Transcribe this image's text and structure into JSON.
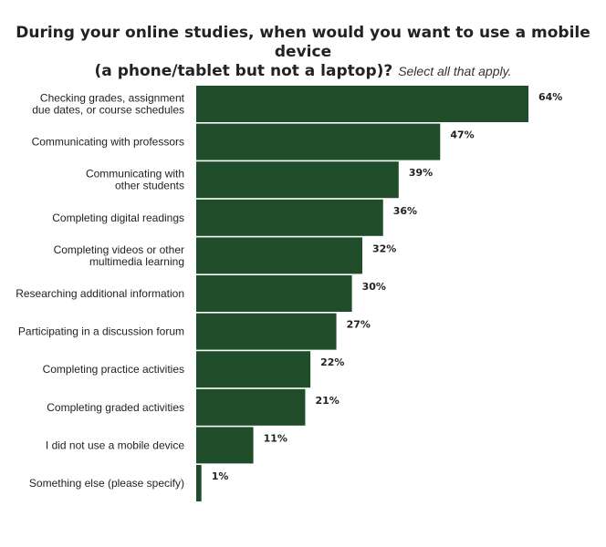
{
  "title": {
    "line1": "During your online studies, when would you want to use a mobile device",
    "line2": "(a phone/tablet but not a laptop)?",
    "note": "Select all that apply."
  },
  "colors": {
    "bar": "#1f4d2a",
    "text": "#222222"
  },
  "chart_data": {
    "type": "bar",
    "orientation": "horizontal",
    "categories": [
      [
        "Checking grades, assignment",
        "due dates, or course schedules"
      ],
      [
        "Communicating with professors"
      ],
      [
        "Communicating with",
        "other students"
      ],
      [
        "Completing digital readings"
      ],
      [
        "Completing videos or other",
        "multimedia learning"
      ],
      [
        "Researching additional information"
      ],
      [
        "Participating in a discussion forum"
      ],
      [
        "Completing practice activities"
      ],
      [
        "Completing graded activities"
      ],
      [
        "I did not use a mobile device"
      ],
      [
        "Something else (please specify)"
      ]
    ],
    "values": [
      64,
      47,
      39,
      36,
      32,
      30,
      27,
      22,
      21,
      11,
      1
    ],
    "data_labels": [
      "64%",
      "47%",
      "39%",
      "36%",
      "32%",
      "30%",
      "27%",
      "22%",
      "21%",
      "11%",
      "1%"
    ],
    "xlim": [
      0,
      64
    ],
    "grid": false,
    "legend": "none"
  }
}
